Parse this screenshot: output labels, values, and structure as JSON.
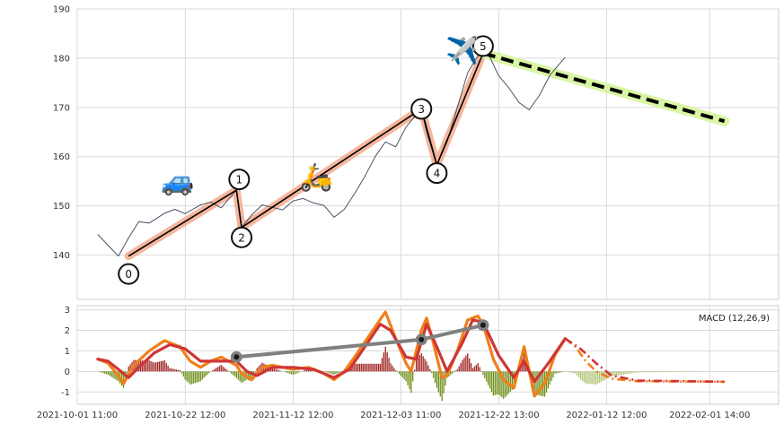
{
  "chart_data": [
    {
      "type": "line",
      "panel": "price",
      "y_ticks": [
        140,
        150,
        160,
        170,
        180,
        190
      ],
      "ylim": [
        131,
        190
      ],
      "x_range": [
        "2021-10-01 11:00",
        "2022-02-15 00:00"
      ],
      "grid": true,
      "price_series": {
        "color": "#4a5266",
        "points": [
          [
            "2021-10-05 11:00",
            144.2
          ],
          [
            "2021-10-07 11:00",
            142.0
          ],
          [
            "2021-10-09 11:00",
            139.8
          ],
          [
            "2021-10-11 11:00",
            143.5
          ],
          [
            "2021-10-13 11:00",
            146.8
          ],
          [
            "2021-10-15 11:00",
            146.5
          ],
          [
            "2021-10-18 11:00",
            148.5
          ],
          [
            "2021-10-20 11:00",
            149.3
          ],
          [
            "2021-10-22 11:00",
            148.4
          ],
          [
            "2021-10-25 11:00",
            150.2
          ],
          [
            "2021-10-27 11:00",
            150.8
          ],
          [
            "2021-10-29 11:00",
            149.6
          ],
          [
            "2021-11-01 11:00",
            153.2
          ],
          [
            "2021-11-02 11:00",
            145.6
          ],
          [
            "2021-11-04 11:00",
            148.2
          ],
          [
            "2021-11-06 11:00",
            150.2
          ],
          [
            "2021-11-08 11:00",
            149.7
          ],
          [
            "2021-11-10 11:00",
            149.2
          ],
          [
            "2021-11-12 11:00",
            151.0
          ],
          [
            "2021-11-14 11:00",
            151.5
          ],
          [
            "2021-11-16 11:00",
            150.6
          ],
          [
            "2021-11-18 11:00",
            150.1
          ],
          [
            "2021-11-20 11:00",
            147.7
          ],
          [
            "2021-11-22 11:00",
            149.3
          ],
          [
            "2021-11-24 11:00",
            152.5
          ],
          [
            "2021-11-26 11:00",
            156.0
          ],
          [
            "2021-11-28 11:00",
            160.0
          ],
          [
            "2021-11-30 11:00",
            163.0
          ],
          [
            "2021-12-02 11:00",
            162.0
          ],
          [
            "2021-12-04 11:00",
            166.0
          ],
          [
            "2021-12-06 11:00",
            168.5
          ],
          [
            "2021-12-07 11:00",
            169.7
          ],
          [
            "2021-12-08 11:00",
            165.0
          ],
          [
            "2021-12-10 11:00",
            158.3
          ],
          [
            "2021-12-12 11:00",
            163.0
          ],
          [
            "2021-12-14 11:00",
            170.0
          ],
          [
            "2021-12-16 11:00",
            177.0
          ],
          [
            "2021-12-18 11:00",
            180.5
          ],
          [
            "2021-12-20 11:00",
            181.0
          ],
          [
            "2021-12-22 11:00",
            176.5
          ],
          [
            "2021-12-24 11:00",
            174.0
          ],
          [
            "2021-12-26 11:00",
            171.0
          ],
          [
            "2021-12-28 11:00",
            169.5
          ],
          [
            "2021-12-30 11:00",
            172.5
          ],
          [
            "2022-01-01 11:00",
            176.5
          ],
          [
            "2022-01-03 11:00",
            179.0
          ],
          [
            "2022-01-04 11:00",
            180.2
          ]
        ]
      },
      "zigzag": {
        "labels": [
          "0",
          "1",
          "2",
          "3",
          "4",
          "5"
        ],
        "points": [
          [
            "2021-10-11 11:00",
            139.8
          ],
          [
            "2021-11-01 11:00",
            153.2
          ],
          [
            "2021-11-02 11:00",
            145.6
          ],
          [
            "2021-12-07 11:00",
            169.7
          ],
          [
            "2021-12-10 11:00",
            158.3
          ],
          [
            "2021-12-19 11:00",
            181.0
          ]
        ],
        "line_color": "#000000",
        "band_color": "#f4a98b"
      },
      "forecast": {
        "points": [
          [
            "2021-12-19 11:00",
            181.0
          ],
          [
            "2022-02-04 11:00",
            167.2
          ]
        ],
        "line_color": "#000000",
        "band_color": "#d7f5a0"
      },
      "icons": [
        {
          "name": "car",
          "glyph": "🚙",
          "at": [
            "2021-10-21 00:00",
            155.2
          ]
        },
        {
          "name": "scooter",
          "glyph": "🛵",
          "at": [
            "2021-11-17 00:00",
            156.0
          ]
        },
        {
          "name": "airplane",
          "glyph": "✈️",
          "at": [
            "2021-12-15 11:00",
            181.7
          ]
        }
      ]
    },
    {
      "type": "line",
      "panel": "macd",
      "legend": "MACD (12,26,9)",
      "y_ticks": [
        -1,
        0,
        1,
        2,
        3
      ],
      "ylim": [
        -1.6,
        3.2
      ],
      "x_range": [
        "2021-10-01 11:00",
        "2022-02-15 00:00"
      ],
      "grid": true,
      "x_tick_labels": [
        "2021-10-01 11:00",
        "2021-10-22 12:00",
        "2021-11-12 12:00",
        "2021-12-03 11:00",
        "2021-12-22 13:00",
        "2022-01-12 12:00",
        "2022-02-01 14:00"
      ],
      "colors": {
        "macd": "#f07f1a",
        "signal": "#cf3535",
        "hist_pos": "#a02525",
        "hist_neg": "#6e8f1a",
        "hist_future": "#b2c57c",
        "trend": "#808080",
        "trend_dot": "#1a1a1a"
      },
      "macd_line": [
        [
          "2021-10-05 11:00",
          0.6
        ],
        [
          "2021-10-07 11:00",
          0.4
        ],
        [
          "2021-10-09 11:00",
          -0.2
        ],
        [
          "2021-10-10 11:00",
          -0.6
        ],
        [
          "2021-10-12 11:00",
          0.3
        ],
        [
          "2021-10-15 11:00",
          1.0
        ],
        [
          "2021-10-18 11:00",
          1.5
        ],
        [
          "2021-10-21 11:00",
          1.2
        ],
        [
          "2021-10-23 11:00",
          0.5
        ],
        [
          "2021-10-25 11:00",
          0.2
        ],
        [
          "2021-10-27 11:00",
          0.5
        ],
        [
          "2021-10-29 11:00",
          0.7
        ],
        [
          "2021-11-01 11:00",
          0.3
        ],
        [
          "2021-11-02 11:00",
          -0.1
        ],
        [
          "2021-11-04 11:00",
          -0.4
        ],
        [
          "2021-11-06 11:00",
          0.2
        ],
        [
          "2021-11-08 11:00",
          0.3
        ],
        [
          "2021-11-10 11:00",
          0.2
        ],
        [
          "2021-11-12 11:00",
          0.1
        ],
        [
          "2021-11-15 11:00",
          0.2
        ],
        [
          "2021-11-18 11:00",
          -0.1
        ],
        [
          "2021-11-20 11:00",
          -0.4
        ],
        [
          "2021-11-22 11:00",
          0.0
        ],
        [
          "2021-11-24 11:00",
          0.7
        ],
        [
          "2021-11-27 11:00",
          1.8
        ],
        [
          "2021-11-30 11:00",
          2.9
        ],
        [
          "2021-12-02 11:00",
          1.6
        ],
        [
          "2021-12-04 11:00",
          0.4
        ],
        [
          "2021-12-05 11:00",
          0.0
        ],
        [
          "2021-12-07 11:00",
          2.0
        ],
        [
          "2021-12-08 11:00",
          2.6
        ],
        [
          "2021-12-09 11:00",
          1.7
        ],
        [
          "2021-12-11 11:00",
          -0.3
        ],
        [
          "2021-12-12 11:00",
          -0.2
        ],
        [
          "2021-12-14 11:00",
          1.0
        ],
        [
          "2021-12-16 11:00",
          2.5
        ],
        [
          "2021-12-18 11:00",
          2.7
        ],
        [
          "2021-12-19 11:00",
          2.3
        ],
        [
          "2021-12-21 11:00",
          0.6
        ],
        [
          "2021-12-23 11:00",
          -0.4
        ],
        [
          "2021-12-25 11:00",
          -0.8
        ],
        [
          "2021-12-27 11:00",
          1.2
        ],
        [
          "2021-12-29 11:00",
          -1.2
        ],
        [
          "2021-12-31 11:00",
          -0.6
        ],
        [
          "2022-01-02 11:00",
          0.8
        ],
        [
          "2022-01-04 11:00",
          1.6
        ]
      ],
      "signal_line": [
        [
          "2021-10-05 11:00",
          0.6
        ],
        [
          "2021-10-07 11:00",
          0.5
        ],
        [
          "2021-10-09 11:00",
          0.1
        ],
        [
          "2021-10-11 11:00",
          -0.3
        ],
        [
          "2021-10-13 11:00",
          0.2
        ],
        [
          "2021-10-16 11:00",
          0.9
        ],
        [
          "2021-10-19 11:00",
          1.3
        ],
        [
          "2021-10-22 11:00",
          1.1
        ],
        [
          "2021-10-25 11:00",
          0.5
        ],
        [
          "2021-10-28 11:00",
          0.5
        ],
        [
          "2021-11-01 11:00",
          0.5
        ],
        [
          "2021-11-03 11:00",
          0.0
        ],
        [
          "2021-11-05 11:00",
          -0.2
        ],
        [
          "2021-11-08 11:00",
          0.2
        ],
        [
          "2021-11-12 11:00",
          0.2
        ],
        [
          "2021-11-16 11:00",
          0.1
        ],
        [
          "2021-11-20 11:00",
          -0.3
        ],
        [
          "2021-11-23 11:00",
          0.1
        ],
        [
          "2021-11-26 11:00",
          1.2
        ],
        [
          "2021-11-29 11:00",
          2.3
        ],
        [
          "2021-12-01 11:00",
          2.0
        ],
        [
          "2021-12-04 11:00",
          0.7
        ],
        [
          "2021-12-06 11:00",
          0.6
        ],
        [
          "2021-12-08 11:00",
          2.3
        ],
        [
          "2021-12-10 11:00",
          1.2
        ],
        [
          "2021-12-12 11:00",
          0.0
        ],
        [
          "2021-12-15 11:00",
          1.4
        ],
        [
          "2021-12-17 11:00",
          2.5
        ],
        [
          "2021-12-19 11:00",
          2.4
        ],
        [
          "2021-12-22 11:00",
          0.8
        ],
        [
          "2021-12-25 11:00",
          -0.3
        ],
        [
          "2021-12-27 11:00",
          0.5
        ],
        [
          "2021-12-29 11:00",
          -0.5
        ],
        [
          "2022-01-01 11:00",
          0.5
        ],
        [
          "2022-01-04 11:00",
          1.6
        ]
      ],
      "forecast_macd": [
        [
          "2022-01-04 11:00",
          1.6
        ],
        [
          "2022-01-06 11:00",
          1.2
        ],
        [
          "2022-01-08 11:00",
          0.5
        ],
        [
          "2022-01-10 11:00",
          0.0
        ],
        [
          "2022-01-13 11:00",
          -0.35
        ],
        [
          "2022-01-18 11:00",
          -0.48
        ],
        [
          "2022-02-04 11:00",
          -0.5
        ]
      ],
      "forecast_signal": [
        [
          "2022-01-04 11:00",
          1.6
        ],
        [
          "2022-01-07 11:00",
          1.1
        ],
        [
          "2022-01-10 11:00",
          0.4
        ],
        [
          "2022-01-13 11:00",
          -0.2
        ],
        [
          "2022-01-18 11:00",
          -0.45
        ],
        [
          "2022-02-04 11:00",
          -0.5
        ]
      ],
      "trend_points": [
        [
          "2021-11-01 11:00",
          0.7
        ],
        [
          "2021-12-07 11:00",
          1.55
        ],
        [
          "2021-12-19 11:00",
          2.25
        ]
      ]
    }
  ]
}
